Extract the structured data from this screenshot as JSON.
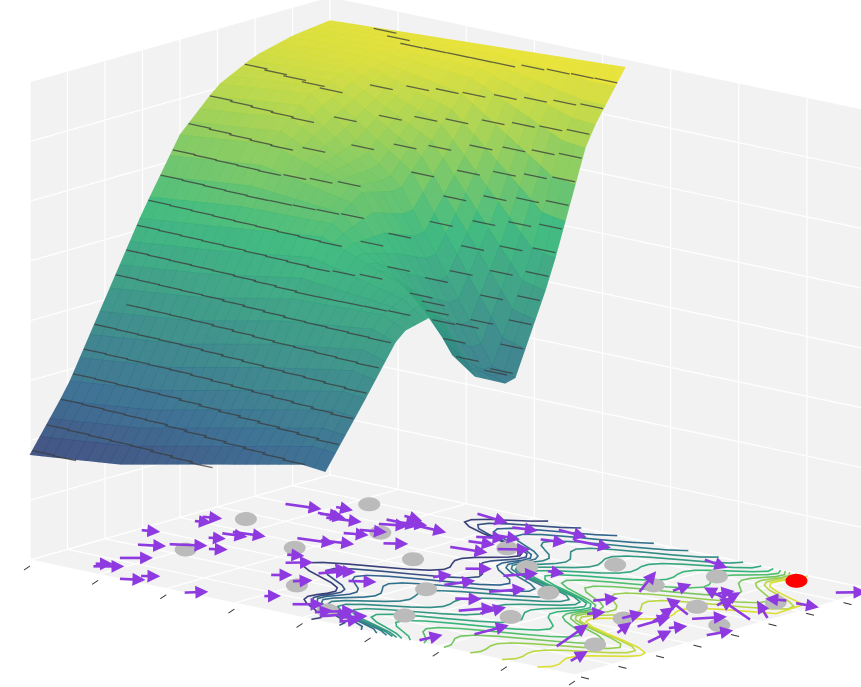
{
  "chart_data": {
    "type": "surface",
    "title": "",
    "xlabel": "",
    "ylabel": "",
    "zlabel": "",
    "xlim": [
      -6,
      6
    ],
    "ylim": [
      -6,
      6
    ],
    "zlim": [
      0,
      1
    ],
    "grid": true,
    "axis_tick_labels": "hidden",
    "colormap": [
      "#440154",
      "#31688e",
      "#35b779",
      "#fde725"
    ],
    "surface_rows": [
      {
        "x": -6,
        "values": [
          0.22,
          0.34,
          0.5,
          0.66,
          0.8,
          0.88,
          0.92,
          0.94,
          0.95
        ]
      },
      {
        "x": -4,
        "values": [
          0.24,
          0.36,
          0.52,
          0.68,
          0.82,
          0.9,
          0.93,
          0.95,
          0.96
        ]
      },
      {
        "x": -2,
        "values": [
          0.28,
          0.4,
          0.56,
          0.7,
          0.76,
          0.74,
          0.84,
          0.94,
          0.97
        ]
      },
      {
        "x": 0,
        "values": [
          0.32,
          0.44,
          0.58,
          0.62,
          0.46,
          0.4,
          0.6,
          0.86,
          0.98
        ]
      },
      {
        "x": 2,
        "values": [
          0.3,
          0.42,
          0.5,
          0.46,
          0.32,
          0.34,
          0.56,
          0.84,
          0.99
        ]
      },
      {
        "x": 4,
        "values": [
          0.26,
          0.34,
          0.38,
          0.34,
          0.3,
          0.4,
          0.64,
          0.88,
          1.0
        ]
      }
    ],
    "surface_y": [
      -6,
      -4.5,
      -3,
      -1.5,
      0,
      1.5,
      3,
      4.5,
      6
    ],
    "contour_levels": 22,
    "obstacles": [
      [
        -4.5,
        -2.5
      ],
      [
        -3.2,
        -0.5
      ],
      [
        -2.8,
        2.2
      ],
      [
        -1.5,
        -3.5
      ],
      [
        -1.2,
        0.6
      ],
      [
        -0.5,
        3.1
      ],
      [
        0.3,
        -1.6
      ],
      [
        0.6,
        1.9
      ],
      [
        1.2,
        -4.1
      ],
      [
        1.6,
        3.6
      ],
      [
        2.0,
        0.2
      ],
      [
        2.6,
        -2.4
      ],
      [
        3.0,
        2.6
      ],
      [
        3.4,
        4.4
      ],
      [
        4.1,
        -0.6
      ],
      [
        4.5,
        1.6
      ],
      [
        4.9,
        -3.2
      ],
      [
        5.3,
        3.3
      ],
      [
        -4.2,
        4.3
      ],
      [
        -5.1,
        1.0
      ],
      [
        5.6,
        0.5
      ],
      [
        0.0,
        -5.0
      ]
    ],
    "goal": [
      4.6,
      5.4
    ],
    "vector_field": {
      "label": "gradient arrows",
      "count": 90,
      "color": "#8e3ae0"
    },
    "colors": {
      "pane": "#f2f2f2",
      "pane_grid": "#ffffff",
      "obstacle": "#bbbbbb",
      "goal": "#ff0000",
      "arrow": "#8e3ae0"
    }
  }
}
